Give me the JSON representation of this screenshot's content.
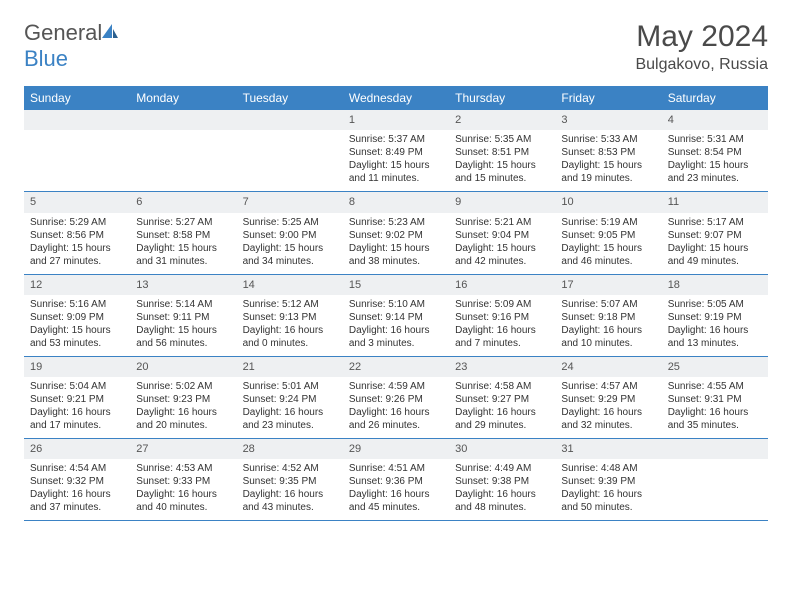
{
  "brand": {
    "part1": "General",
    "part2": "Blue"
  },
  "title": "May 2024",
  "location": "Bulgakovo, Russia",
  "colors": {
    "header_bg": "#3b82c4",
    "daynum_bg": "#eef0f2",
    "text": "#333333",
    "title_text": "#4a4a4a"
  },
  "day_names": [
    "Sunday",
    "Monday",
    "Tuesday",
    "Wednesday",
    "Thursday",
    "Friday",
    "Saturday"
  ],
  "weeks": [
    [
      {
        "n": "",
        "sr": "",
        "ss": "",
        "dl": ""
      },
      {
        "n": "",
        "sr": "",
        "ss": "",
        "dl": ""
      },
      {
        "n": "",
        "sr": "",
        "ss": "",
        "dl": ""
      },
      {
        "n": "1",
        "sr": "5:37 AM",
        "ss": "8:49 PM",
        "dl": "15 hours and 11 minutes."
      },
      {
        "n": "2",
        "sr": "5:35 AM",
        "ss": "8:51 PM",
        "dl": "15 hours and 15 minutes."
      },
      {
        "n": "3",
        "sr": "5:33 AM",
        "ss": "8:53 PM",
        "dl": "15 hours and 19 minutes."
      },
      {
        "n": "4",
        "sr": "5:31 AM",
        "ss": "8:54 PM",
        "dl": "15 hours and 23 minutes."
      }
    ],
    [
      {
        "n": "5",
        "sr": "5:29 AM",
        "ss": "8:56 PM",
        "dl": "15 hours and 27 minutes."
      },
      {
        "n": "6",
        "sr": "5:27 AM",
        "ss": "8:58 PM",
        "dl": "15 hours and 31 minutes."
      },
      {
        "n": "7",
        "sr": "5:25 AM",
        "ss": "9:00 PM",
        "dl": "15 hours and 34 minutes."
      },
      {
        "n": "8",
        "sr": "5:23 AM",
        "ss": "9:02 PM",
        "dl": "15 hours and 38 minutes."
      },
      {
        "n": "9",
        "sr": "5:21 AM",
        "ss": "9:04 PM",
        "dl": "15 hours and 42 minutes."
      },
      {
        "n": "10",
        "sr": "5:19 AM",
        "ss": "9:05 PM",
        "dl": "15 hours and 46 minutes."
      },
      {
        "n": "11",
        "sr": "5:17 AM",
        "ss": "9:07 PM",
        "dl": "15 hours and 49 minutes."
      }
    ],
    [
      {
        "n": "12",
        "sr": "5:16 AM",
        "ss": "9:09 PM",
        "dl": "15 hours and 53 minutes."
      },
      {
        "n": "13",
        "sr": "5:14 AM",
        "ss": "9:11 PM",
        "dl": "15 hours and 56 minutes."
      },
      {
        "n": "14",
        "sr": "5:12 AM",
        "ss": "9:13 PM",
        "dl": "16 hours and 0 minutes."
      },
      {
        "n": "15",
        "sr": "5:10 AM",
        "ss": "9:14 PM",
        "dl": "16 hours and 3 minutes."
      },
      {
        "n": "16",
        "sr": "5:09 AM",
        "ss": "9:16 PM",
        "dl": "16 hours and 7 minutes."
      },
      {
        "n": "17",
        "sr": "5:07 AM",
        "ss": "9:18 PM",
        "dl": "16 hours and 10 minutes."
      },
      {
        "n": "18",
        "sr": "5:05 AM",
        "ss": "9:19 PM",
        "dl": "16 hours and 13 minutes."
      }
    ],
    [
      {
        "n": "19",
        "sr": "5:04 AM",
        "ss": "9:21 PM",
        "dl": "16 hours and 17 minutes."
      },
      {
        "n": "20",
        "sr": "5:02 AM",
        "ss": "9:23 PM",
        "dl": "16 hours and 20 minutes."
      },
      {
        "n": "21",
        "sr": "5:01 AM",
        "ss": "9:24 PM",
        "dl": "16 hours and 23 minutes."
      },
      {
        "n": "22",
        "sr": "4:59 AM",
        "ss": "9:26 PM",
        "dl": "16 hours and 26 minutes."
      },
      {
        "n": "23",
        "sr": "4:58 AM",
        "ss": "9:27 PM",
        "dl": "16 hours and 29 minutes."
      },
      {
        "n": "24",
        "sr": "4:57 AM",
        "ss": "9:29 PM",
        "dl": "16 hours and 32 minutes."
      },
      {
        "n": "25",
        "sr": "4:55 AM",
        "ss": "9:31 PM",
        "dl": "16 hours and 35 minutes."
      }
    ],
    [
      {
        "n": "26",
        "sr": "4:54 AM",
        "ss": "9:32 PM",
        "dl": "16 hours and 37 minutes."
      },
      {
        "n": "27",
        "sr": "4:53 AM",
        "ss": "9:33 PM",
        "dl": "16 hours and 40 minutes."
      },
      {
        "n": "28",
        "sr": "4:52 AM",
        "ss": "9:35 PM",
        "dl": "16 hours and 43 minutes."
      },
      {
        "n": "29",
        "sr": "4:51 AM",
        "ss": "9:36 PM",
        "dl": "16 hours and 45 minutes."
      },
      {
        "n": "30",
        "sr": "4:49 AM",
        "ss": "9:38 PM",
        "dl": "16 hours and 48 minutes."
      },
      {
        "n": "31",
        "sr": "4:48 AM",
        "ss": "9:39 PM",
        "dl": "16 hours and 50 minutes."
      },
      {
        "n": "",
        "sr": "",
        "ss": "",
        "dl": ""
      }
    ]
  ],
  "labels": {
    "sunrise": "Sunrise:",
    "sunset": "Sunset:",
    "daylight": "Daylight:"
  }
}
